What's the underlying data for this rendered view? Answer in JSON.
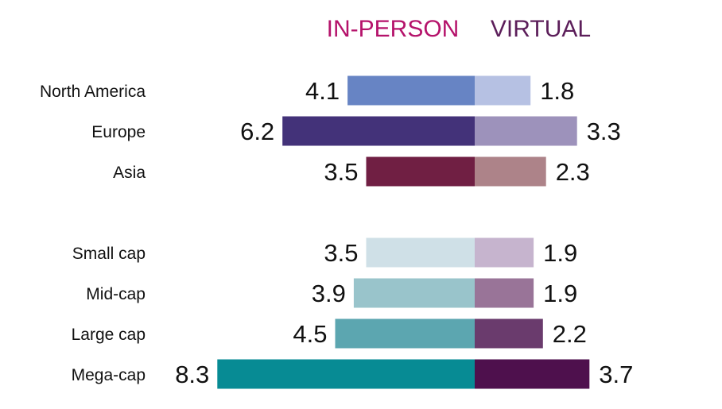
{
  "chart_data": {
    "type": "bar",
    "orientation": "horizontal-diverging",
    "headers": {
      "left": {
        "label": "IN-PERSON",
        "color": "#b5136b"
      },
      "right": {
        "label": "VIRTUAL",
        "color": "#5c1e5a"
      }
    },
    "categories": [
      "North America",
      "Europe",
      "Asia",
      "Small cap",
      "Mid-cap",
      "Large cap",
      "Mega-cap"
    ],
    "groups": [
      [
        "North America",
        "Europe",
        "Asia"
      ],
      [
        "Small cap",
        "Mid-cap",
        "Large cap",
        "Mega-cap"
      ]
    ],
    "series": [
      {
        "name": "IN-PERSON",
        "values": [
          4.1,
          6.2,
          3.5,
          3.5,
          3.9,
          4.5,
          8.3
        ],
        "colors": [
          "#6784c4",
          "#433279",
          "#701f43",
          "#cfe0e7",
          "#99c4cb",
          "#5ca6b0",
          "#078b94"
        ]
      },
      {
        "name": "VIRTUAL",
        "values": [
          1.8,
          3.3,
          2.3,
          1.9,
          1.9,
          2.2,
          3.7
        ],
        "colors": [
          "#b6c1e3",
          "#9d92bb",
          "#ad8389",
          "#c6b4ce",
          "#997498",
          "#6a3b6d",
          "#4e104d"
        ]
      }
    ],
    "xlim": [
      8.3,
      3.7
    ],
    "grid": false,
    "legend": "top"
  }
}
